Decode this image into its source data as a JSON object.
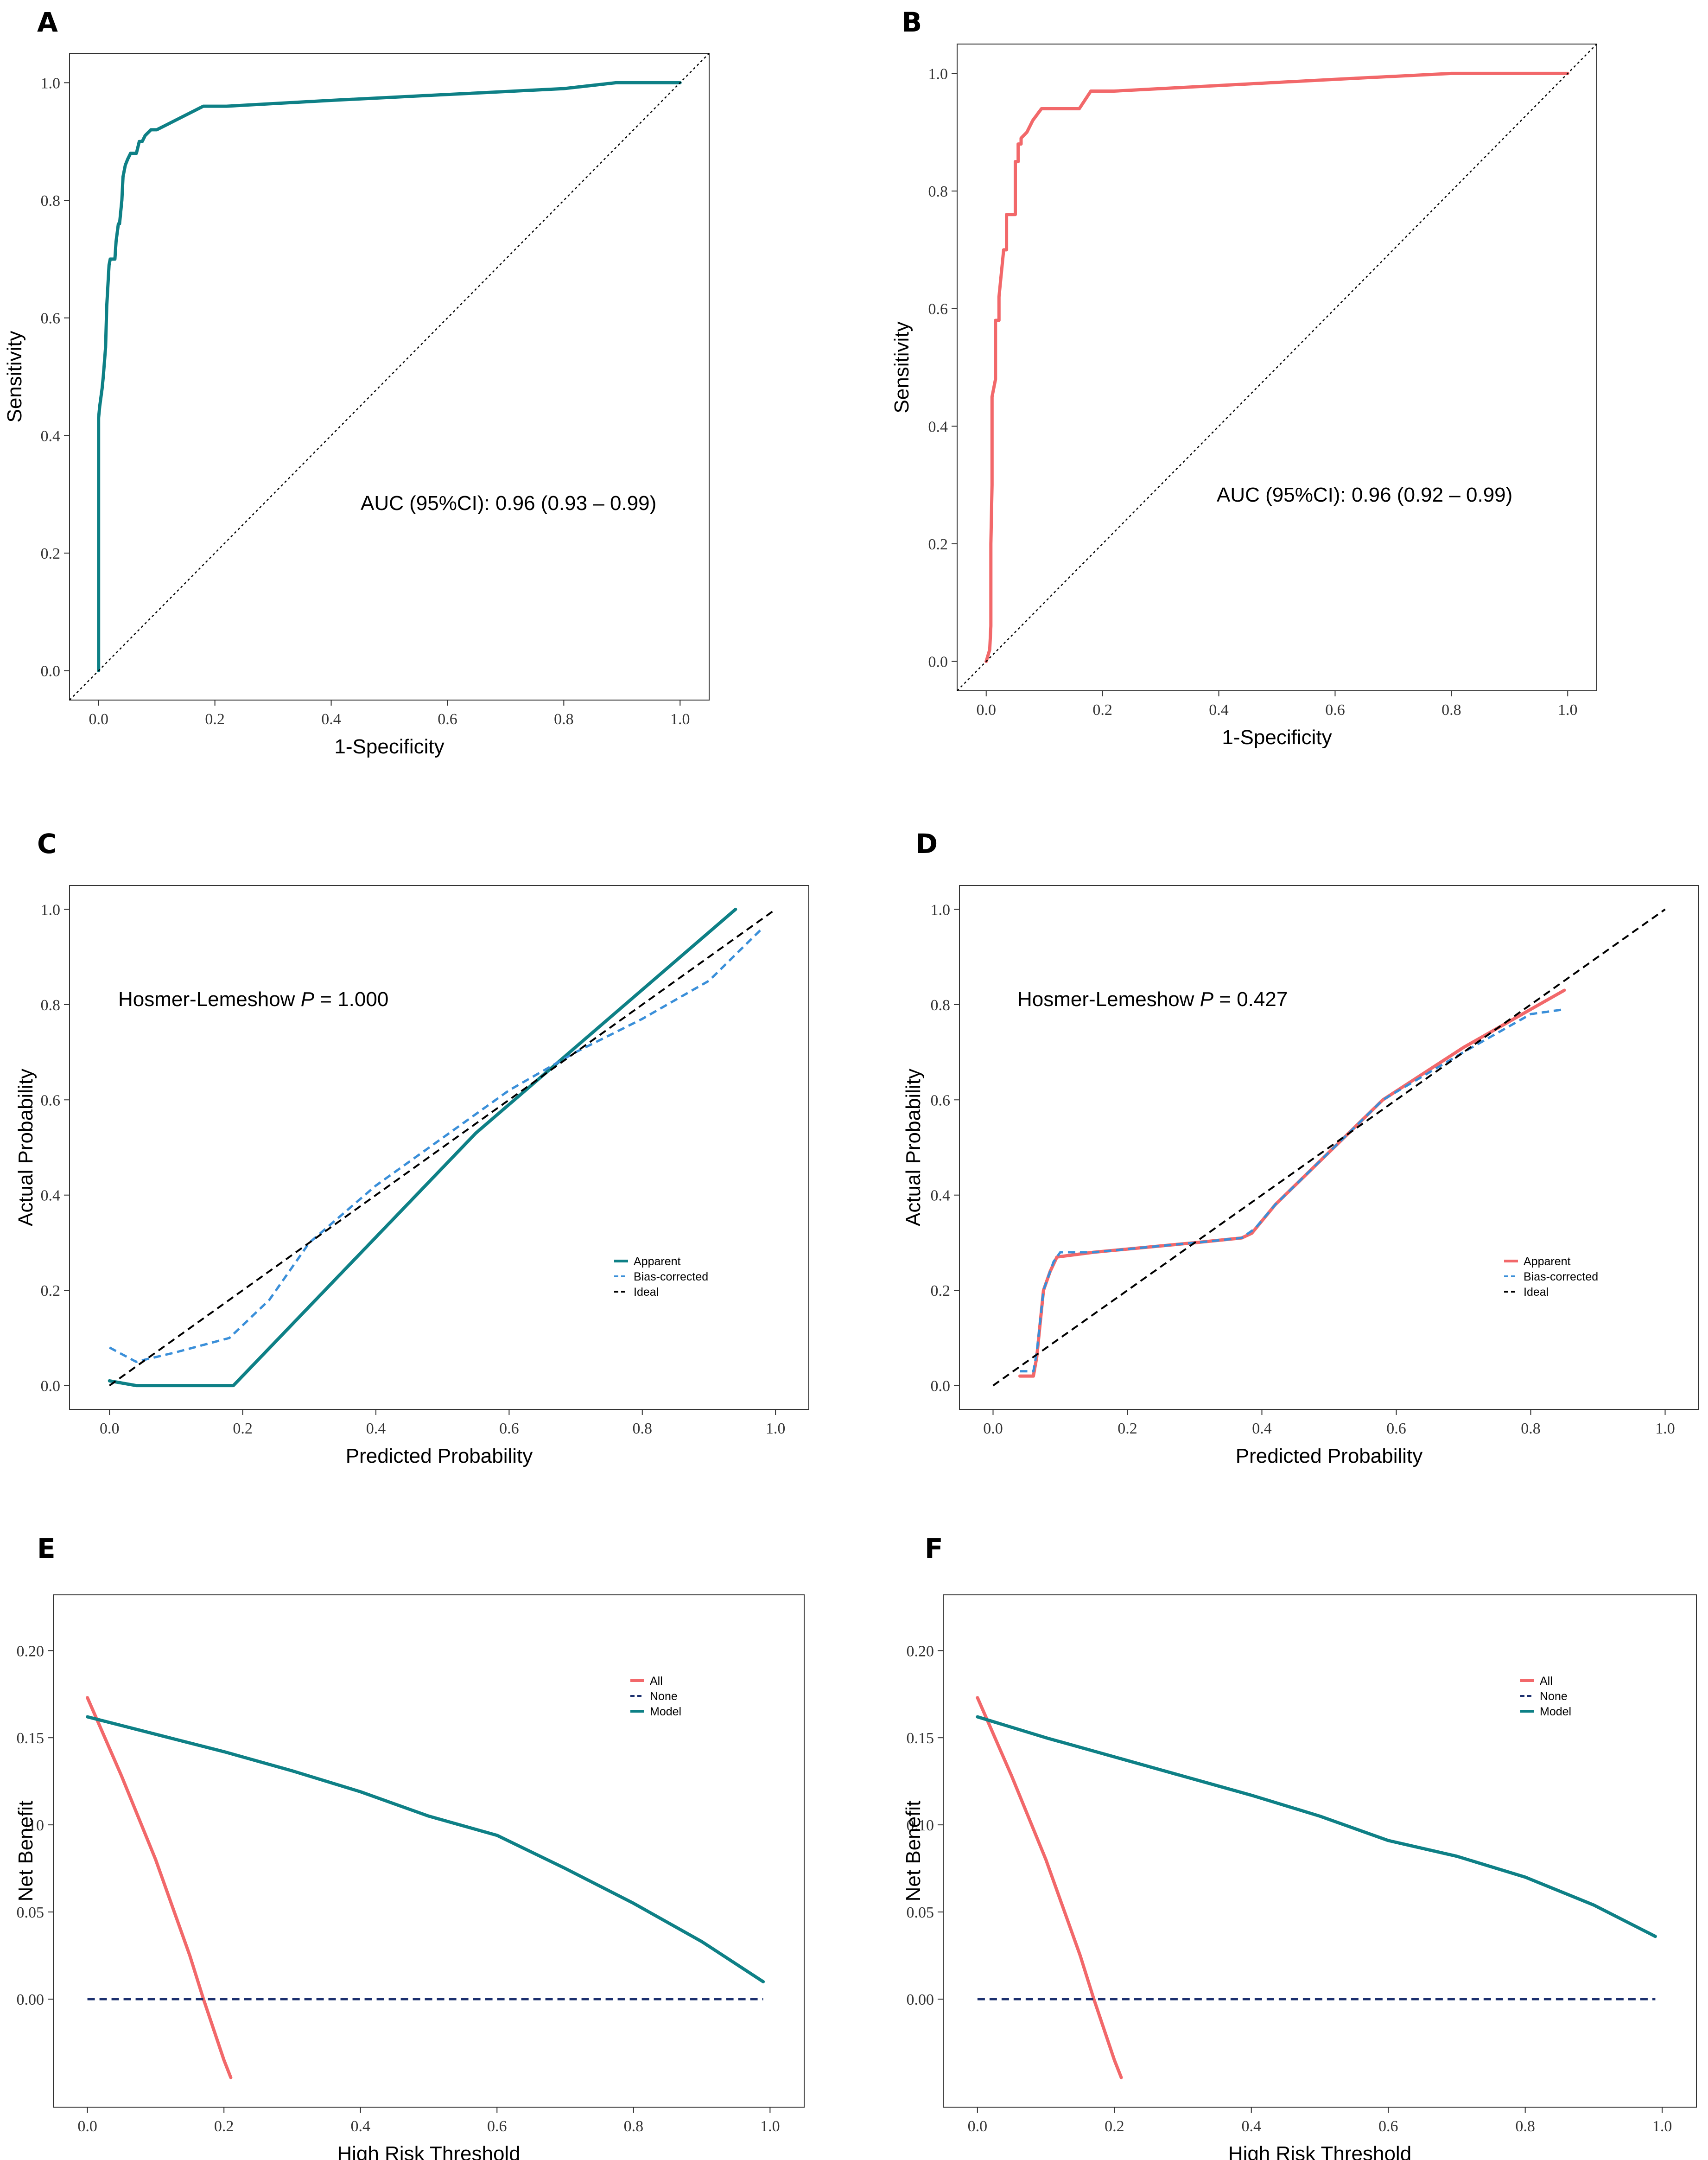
{
  "colors": {
    "teal": "#0E8086",
    "salmon": "#F2686A",
    "blue_dashed": "#3A8FD9",
    "navy": "#1B2F6E",
    "black": "#000000",
    "frame": "#333333"
  },
  "chart_data": [
    {
      "panel": "A",
      "type": "line",
      "xlabel": "1-Specificity",
      "ylabel": "Sensitivity",
      "xlim": [
        -0.05,
        1.05
      ],
      "ylim": [
        -0.05,
        1.05
      ],
      "xticks": [
        "0.0",
        "0.2",
        "0.4",
        "0.6",
        "0.8",
        "1.0"
      ],
      "yticks": [
        "0.0",
        "0.2",
        "0.4",
        "0.6",
        "0.8",
        "1.0"
      ],
      "annotation": "AUC (95%CI): 0.96 (0.93 – 0.99)",
      "series": [
        {
          "name": "ROC",
          "color": "#0E8086",
          "dash": "solid",
          "x": [
            0,
            0,
            0.002,
            0.006,
            0.008,
            0.012,
            0.014,
            0.018,
            0.02,
            0.022,
            0.024,
            0.028,
            0.03,
            0.034,
            0.036,
            0.04,
            0.042,
            0.046,
            0.05,
            0.055,
            0.06,
            0.065,
            0.07,
            0.075,
            0.08,
            0.09,
            0.1,
            0.12,
            0.14,
            0.18,
            0.22,
            0.4,
            0.6,
            0.8,
            0.89,
            1.0
          ],
          "y": [
            0,
            0.43,
            0.45,
            0.48,
            0.5,
            0.55,
            0.62,
            0.69,
            0.7,
            0.7,
            0.7,
            0.7,
            0.73,
            0.76,
            0.76,
            0.8,
            0.84,
            0.86,
            0.87,
            0.88,
            0.88,
            0.88,
            0.9,
            0.9,
            0.91,
            0.92,
            0.92,
            0.93,
            0.94,
            0.96,
            0.96,
            0.97,
            0.98,
            0.99,
            1.0,
            1.0
          ]
        },
        {
          "name": "Reference",
          "color": "#000000",
          "dash": "dotted",
          "x": [
            -0.05,
            1.05
          ],
          "y": [
            -0.05,
            1.05
          ]
        }
      ]
    },
    {
      "panel": "B",
      "type": "line",
      "xlabel": "1-Specificity",
      "ylabel": "Sensitivity",
      "xlim": [
        -0.05,
        1.05
      ],
      "ylim": [
        -0.05,
        1.05
      ],
      "xticks": [
        "0.0",
        "0.2",
        "0.4",
        "0.6",
        "0.8",
        "1.0"
      ],
      "yticks": [
        "0.0",
        "0.2",
        "0.4",
        "0.6",
        "0.8",
        "1.0"
      ],
      "annotation": "AUC (95%CI): 0.96 (0.92 – 0.99)",
      "series": [
        {
          "name": "ROC",
          "color": "#F2686A",
          "dash": "solid",
          "x": [
            0,
            0.006,
            0.008,
            0.008,
            0.01,
            0.01,
            0.016,
            0.016,
            0.022,
            0.022,
            0.025,
            0.03,
            0.035,
            0.035,
            0.05,
            0.05,
            0.055,
            0.055,
            0.06,
            0.06,
            0.07,
            0.08,
            0.095,
            0.16,
            0.18,
            0.22,
            0.6,
            0.8,
            1.0
          ],
          "y": [
            0,
            0.02,
            0.06,
            0.2,
            0.3,
            0.45,
            0.48,
            0.58,
            0.58,
            0.62,
            0.65,
            0.7,
            0.7,
            0.76,
            0.76,
            0.85,
            0.85,
            0.88,
            0.88,
            0.89,
            0.9,
            0.92,
            0.94,
            0.94,
            0.97,
            0.97,
            0.99,
            1.0,
            1.0
          ]
        },
        {
          "name": "Reference",
          "color": "#000000",
          "dash": "dotted",
          "x": [
            -0.05,
            1.05
          ],
          "y": [
            -0.05,
            1.05
          ]
        }
      ]
    },
    {
      "panel": "C",
      "type": "line",
      "xlabel": "Predicted Probability",
      "ylabel": "Actual Probability",
      "xlim": [
        -0.06,
        1.05
      ],
      "ylim": [
        -0.05,
        1.05
      ],
      "xticks": [
        "0.0",
        "0.2",
        "0.4",
        "0.6",
        "0.8",
        "1.0"
      ],
      "yticks": [
        "0.0",
        "0.2",
        "0.4",
        "0.6",
        "0.8",
        "1.0"
      ],
      "annotation_prefix": "Hosmer-Lemeshow ",
      "annotation_p": "P",
      "annotation_value": " = 1.000",
      "legend": [
        "Apparent",
        "Bias-corrected",
        "Ideal"
      ],
      "series": [
        {
          "name": "Apparent",
          "color": "#0E8086",
          "dash": "solid",
          "x": [
            0.0,
            0.04,
            0.1,
            0.186,
            0.55,
            0.94
          ],
          "y": [
            0.01,
            0.0,
            0.0,
            0.0,
            0.53,
            1.0
          ]
        },
        {
          "name": "Bias-corrected",
          "color": "#3A8FD9",
          "dash": "dashed",
          "x": [
            0.0,
            0.04,
            0.1,
            0.18,
            0.24,
            0.3,
            0.4,
            0.5,
            0.6,
            0.7,
            0.8,
            0.9,
            0.98
          ],
          "y": [
            0.08,
            0.05,
            0.07,
            0.1,
            0.18,
            0.3,
            0.42,
            0.52,
            0.62,
            0.7,
            0.77,
            0.85,
            0.96
          ]
        },
        {
          "name": "Ideal",
          "color": "#000000",
          "dash": "dashed",
          "x": [
            0.0,
            1.0
          ],
          "y": [
            0.0,
            1.0
          ]
        }
      ]
    },
    {
      "panel": "D",
      "type": "line",
      "xlabel": "Predicted Probability",
      "ylabel": "Actual Probability",
      "xlim": [
        -0.05,
        1.05
      ],
      "ylim": [
        -0.05,
        1.05
      ],
      "xticks": [
        "0.0",
        "0.2",
        "0.4",
        "0.6",
        "0.8",
        "1.0"
      ],
      "yticks": [
        "0.0",
        "0.2",
        "0.4",
        "0.6",
        "0.8",
        "1.0"
      ],
      "annotation_prefix": "Hosmer-Lemeshow ",
      "annotation_p": "P",
      "annotation_value": " = 0.427",
      "legend": [
        "Apparent",
        "Bias-corrected",
        "Ideal"
      ],
      "series": [
        {
          "name": "Apparent",
          "color": "#F2686A",
          "dash": "solid",
          "x": [
            0.04,
            0.06,
            0.065,
            0.075,
            0.085,
            0.095,
            0.15,
            0.3,
            0.37,
            0.385,
            0.42,
            0.5,
            0.58,
            0.7,
            0.85
          ],
          "y": [
            0.02,
            0.02,
            0.06,
            0.2,
            0.24,
            0.27,
            0.28,
            0.3,
            0.31,
            0.32,
            0.38,
            0.49,
            0.6,
            0.71,
            0.83
          ]
        },
        {
          "name": "Bias-corrected",
          "color": "#3A8FD9",
          "dash": "dashed",
          "x": [
            0.04,
            0.06,
            0.065,
            0.075,
            0.09,
            0.1,
            0.15,
            0.3,
            0.37,
            0.39,
            0.42,
            0.5,
            0.58,
            0.7,
            0.8,
            0.85
          ],
          "y": [
            0.03,
            0.03,
            0.07,
            0.2,
            0.26,
            0.28,
            0.28,
            0.3,
            0.31,
            0.33,
            0.38,
            0.49,
            0.6,
            0.7,
            0.78,
            0.79
          ]
        },
        {
          "name": "Ideal",
          "color": "#000000",
          "dash": "dashed",
          "x": [
            0.0,
            1.0
          ],
          "y": [
            0.0,
            1.0
          ]
        }
      ]
    },
    {
      "panel": "E",
      "type": "line",
      "xlabel": "High Risk Threshold",
      "ylabel": "Net Benefit",
      "xlim": [
        -0.05,
        1.05
      ],
      "ylim": [
        -0.062,
        0.232
      ],
      "xticks": [
        "0.0",
        "0.2",
        "0.4",
        "0.6",
        "0.8",
        "1.0"
      ],
      "yticks": [
        "0.00",
        "0.05",
        ".10",
        "0.15",
        "0.20"
      ],
      "legend": [
        "All",
        "None",
        "Model"
      ],
      "series": [
        {
          "name": "All",
          "color": "#F2686A",
          "dash": "solid",
          "x": [
            0.0,
            0.05,
            0.1,
            0.15,
            0.17,
            0.2,
            0.21
          ],
          "y": [
            0.173,
            0.128,
            0.08,
            0.025,
            0.0,
            -0.035,
            -0.045
          ]
        },
        {
          "name": "None",
          "color": "#1B2F6E",
          "dash": "dashed",
          "x": [
            0.0,
            0.99
          ],
          "y": [
            0.0,
            0.0
          ]
        },
        {
          "name": "Model",
          "color": "#0E8086",
          "dash": "solid",
          "x": [
            0.0,
            0.1,
            0.2,
            0.3,
            0.4,
            0.5,
            0.6,
            0.7,
            0.8,
            0.9,
            0.99
          ],
          "y": [
            0.162,
            0.152,
            0.142,
            0.131,
            0.119,
            0.105,
            0.094,
            0.075,
            0.055,
            0.033,
            0.01
          ]
        }
      ]
    },
    {
      "panel": "F",
      "type": "line",
      "xlabel": "High Risk Threshold",
      "ylabel": "Net Benefit",
      "xlim": [
        -0.05,
        1.05
      ],
      "ylim": [
        -0.062,
        0.232
      ],
      "xticks": [
        "0.0",
        "0.2",
        "0.4",
        "0.6",
        "0.8",
        "1.0"
      ],
      "yticks": [
        "0.00",
        "0.05",
        "0.10",
        "0.15",
        "0.20"
      ],
      "legend": [
        "All",
        "None",
        "Model"
      ],
      "series": [
        {
          "name": "All",
          "color": "#F2686A",
          "dash": "solid",
          "x": [
            0.0,
            0.05,
            0.1,
            0.15,
            0.17,
            0.2,
            0.21
          ],
          "y": [
            0.173,
            0.128,
            0.08,
            0.025,
            0.0,
            -0.035,
            -0.045
          ]
        },
        {
          "name": "None",
          "color": "#1B2F6E",
          "dash": "dashed",
          "x": [
            0.0,
            0.99
          ],
          "y": [
            0.0,
            0.0
          ]
        },
        {
          "name": "Model",
          "color": "#0E8086",
          "dash": "solid",
          "x": [
            0.0,
            0.1,
            0.2,
            0.3,
            0.4,
            0.5,
            0.6,
            0.7,
            0.8,
            0.9,
            0.99
          ],
          "y": [
            0.162,
            0.15,
            0.139,
            0.128,
            0.117,
            0.105,
            0.091,
            0.082,
            0.07,
            0.054,
            0.036
          ]
        }
      ]
    }
  ]
}
